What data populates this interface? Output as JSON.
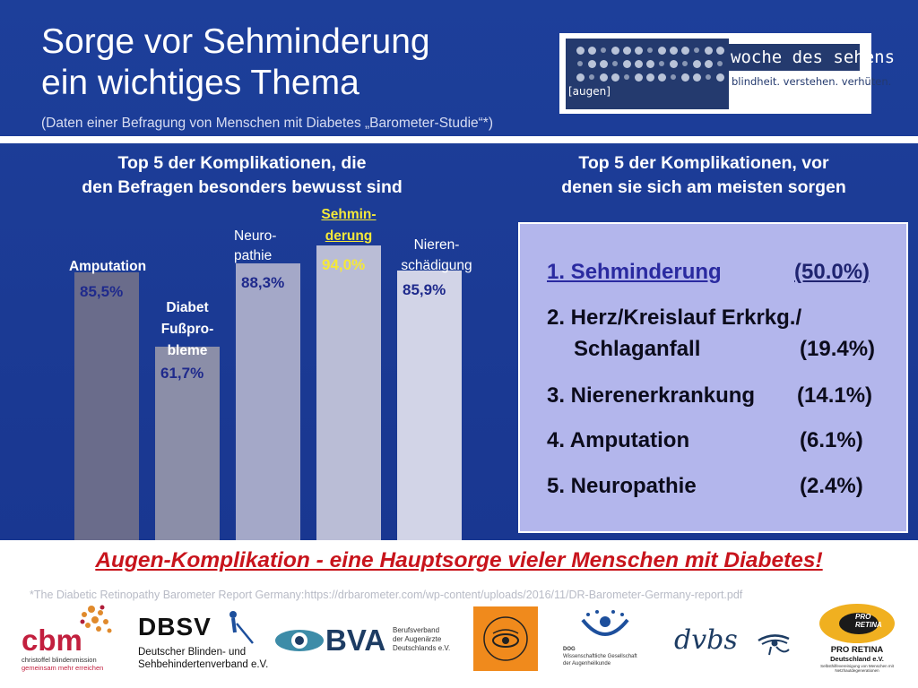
{
  "header": {
    "title_line1": "Sorge vor Sehminderung",
    "title_line2": "ein wichtiges Thema",
    "subtitle": "(Daten einer Befragung von Menschen mit Diabetes „Barometer-Studie“*)"
  },
  "top_logo": {
    "augen": "[augen]",
    "name": "woche des sehens",
    "tagline": "blindheit. verstehen. verhüten."
  },
  "left_heading": [
    "Top 5 der Komplikationen, die",
    "den Befragen besonders bewusst sind"
  ],
  "right_heading": [
    "Top 5 der Komplikationen, vor",
    "denen sie sich am meisten sorgen"
  ],
  "chart_data": {
    "type": "bar",
    "categories": [
      {
        "lines": [
          "Amputation"
        ]
      },
      {
        "lines": [
          "Diabet",
          "Fußpro-",
          "bleme"
        ]
      },
      {
        "lines": [
          "Neuro-",
          "pathie"
        ]
      },
      {
        "lines": [
          "Sehmin-",
          "derung"
        ]
      },
      {
        "lines": [
          "Nieren-",
          "schädigung"
        ]
      }
    ],
    "values": [
      85.5,
      61.7,
      88.3,
      94.0,
      85.9
    ],
    "value_labels": [
      "85,5%",
      "61,7%",
      "88,3%",
      "94,0%",
      "85,9%"
    ],
    "highlight_index": 3,
    "colors": [
      "#6a6c8b",
      "#8b8ea8",
      "#a4a8c8",
      "#babdd6",
      "#d2d4e7"
    ],
    "highlight_color": "#f4e83a",
    "value_color": "#1f2a8c"
  },
  "ranking": [
    {
      "label": "1. Sehminderung",
      "label2": "",
      "pct": "(50.0%)"
    },
    {
      "label": "2. Herz/Kreislauf Erkrkg./",
      "label2": "Schlaganfall",
      "pct": "(19.4%)"
    },
    {
      "label": "3. Nierenerkrankung",
      "label2": "",
      "pct": "(14.1%)"
    },
    {
      "label": "4. Amputation",
      "label2": "",
      "pct": "(6.1%)"
    },
    {
      "label": "5. Neuropathie",
      "label2": "",
      "pct": "(2.4%)"
    }
  ],
  "banner": "Augen-Komplikation - eine Hauptsorge vieler Menschen mit Diabetes!",
  "footnote": "*The Diabetic Retinopathy Barometer Report Germany:https://drbarometer.com/wp-content/uploads/2016/11/DR-Barometer-Germany-report.pdf",
  "logos": {
    "cbm": {
      "name": "cbm",
      "sub1": "christoffel blindenmission",
      "sub2": "gemeinsam mehr erreichen"
    },
    "dbsv": {
      "name": "DBSV",
      "sub1": "Deutscher Blinden- und",
      "sub2": "Sehbehindertenverband e.V."
    },
    "bva": {
      "name": "BVA",
      "sub1": "Berufsverband",
      "sub2": "der Augenärzte",
      "sub3": "Deutschlands e.V."
    },
    "dog": {
      "name": "DOG",
      "sub1": "Wissenschaftliche Gesellschaft",
      "sub2": "der Augenheilkunde"
    },
    "dvbs": {
      "name": "dvbs"
    },
    "proretina": {
      "name1": "PRO",
      "name2": "RETINA",
      "title": "PRO RETINA",
      "sub": "Deutschland e.V.",
      "sub2": "Selbsthilfevereinigung von Menschen mit Netzhautdegenerationen"
    }
  }
}
